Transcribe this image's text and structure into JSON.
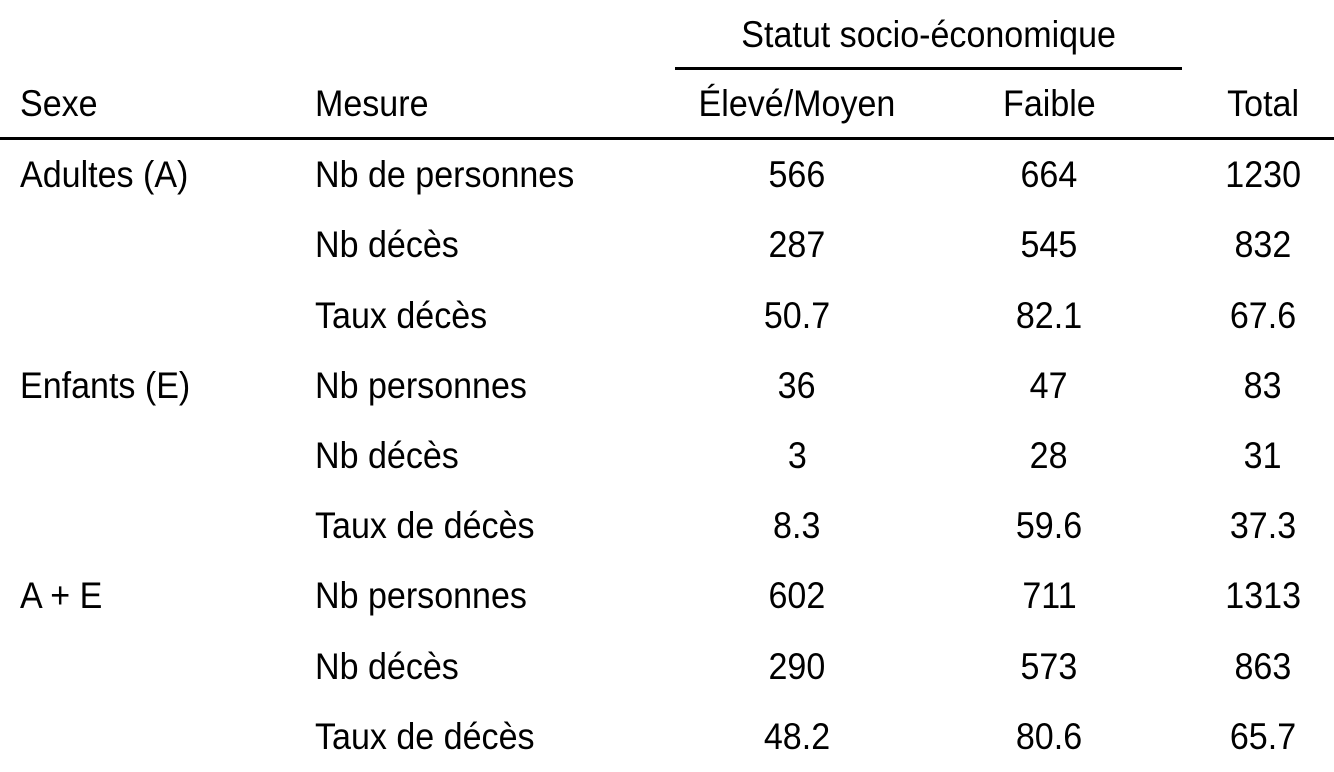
{
  "table": {
    "span_header": {
      "label": "Statut socio-économique"
    },
    "headers": {
      "sexe": "Sexe",
      "mesure": "Mesure",
      "eleve": "Élevé/Moyen",
      "faible": "Faible",
      "total": "Total"
    },
    "rows": [
      {
        "sexe": "Adultes (A)",
        "mesure": "Nb de personnes",
        "eleve": "566",
        "faible": "664",
        "total": "1230"
      },
      {
        "sexe": "",
        "mesure": "Nb décès",
        "eleve": "287",
        "faible": "545",
        "total": "832"
      },
      {
        "sexe": "",
        "mesure": "Taux décès",
        "eleve": "50.7",
        "faible": "82.1",
        "total": "67.6"
      },
      {
        "sexe": "Enfants (E)",
        "mesure": "Nb personnes",
        "eleve": "36",
        "faible": "47",
        "total": "83"
      },
      {
        "sexe": "",
        "mesure": "Nb décès",
        "eleve": "3",
        "faible": "28",
        "total": "31"
      },
      {
        "sexe": "",
        "mesure": "Taux de décès",
        "eleve": "8.3",
        "faible": "59.6",
        "total": "37.3"
      },
      {
        "sexe": "A + E",
        "mesure": "Nb personnes",
        "eleve": "602",
        "faible": "711",
        "total": "1313"
      },
      {
        "sexe": "",
        "mesure": "Nb décès",
        "eleve": "290",
        "faible": "573",
        "total": "863"
      },
      {
        "sexe": "",
        "mesure": "Taux de décès",
        "eleve": "48.2",
        "faible": "80.6",
        "total": "65.7"
      }
    ]
  },
  "colors": {
    "text": "#000000",
    "background": "#ffffff",
    "rule": "#000000"
  },
  "chart_data": {
    "type": "table",
    "column_group_header": {
      "label": "Statut socio-économique",
      "spans_columns": [
        "Élevé/Moyen",
        "Faible"
      ]
    },
    "columns": [
      "Sexe",
      "Mesure",
      "Élevé/Moyen",
      "Faible",
      "Total"
    ],
    "row_groups": [
      {
        "sexe": "Adultes (A)",
        "measures": [
          {
            "mesure": "Nb de personnes",
            "eleve_moyen": 566,
            "faible": 664,
            "total": 1230
          },
          {
            "mesure": "Nb décès",
            "eleve_moyen": 287,
            "faible": 545,
            "total": 832
          },
          {
            "mesure": "Taux décès",
            "eleve_moyen": 50.7,
            "faible": 82.1,
            "total": 67.6
          }
        ]
      },
      {
        "sexe": "Enfants (E)",
        "measures": [
          {
            "mesure": "Nb personnes",
            "eleve_moyen": 36,
            "faible": 47,
            "total": 83
          },
          {
            "mesure": "Nb décès",
            "eleve_moyen": 3,
            "faible": 28,
            "total": 31
          },
          {
            "mesure": "Taux de décès",
            "eleve_moyen": 8.3,
            "faible": 59.6,
            "total": 37.3
          }
        ]
      },
      {
        "sexe": "A + E",
        "measures": [
          {
            "mesure": "Nb personnes",
            "eleve_moyen": 602,
            "faible": 711,
            "total": 1313
          },
          {
            "mesure": "Nb décès",
            "eleve_moyen": 290,
            "faible": 573,
            "total": 863
          },
          {
            "mesure": "Taux de décès",
            "eleve_moyen": 48.2,
            "faible": 80.6,
            "total": 65.7
          }
        ]
      }
    ]
  }
}
